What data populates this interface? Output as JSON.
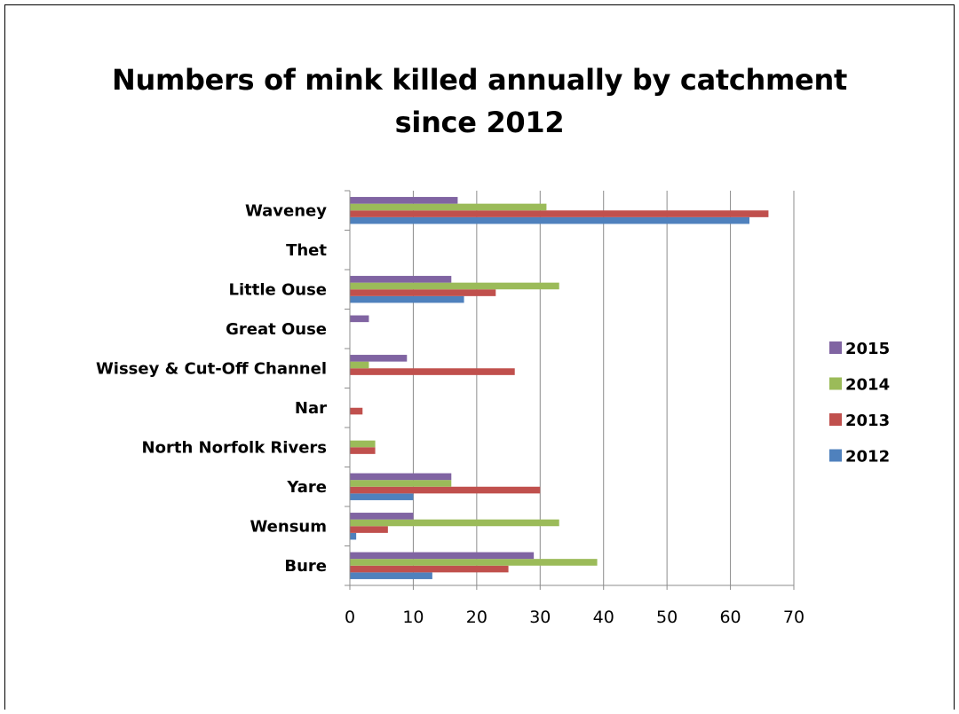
{
  "chart_data": {
    "type": "bar",
    "orientation": "horizontal",
    "title": "Numbers of mink killed annually by catchment since 2012",
    "xlabel": "",
    "ylabel": "",
    "xlim": [
      0,
      70
    ],
    "xticks": [
      0,
      10,
      20,
      30,
      40,
      50,
      60,
      70
    ],
    "grid": "vertical",
    "legend": "right",
    "categories": [
      "Bure",
      "Wensum",
      "Yare",
      "North Norfolk Rivers",
      "Nar",
      "Wissey & Cut-Off Channel",
      "Great Ouse",
      "Little Ouse",
      "Thet",
      "Waveney"
    ],
    "series": [
      {
        "name": "2012",
        "color": "#4F81BD",
        "values": [
          13,
          1,
          10,
          0,
          0,
          0,
          0,
          18,
          0,
          63
        ]
      },
      {
        "name": "2013",
        "color": "#C0504D",
        "values": [
          25,
          6,
          30,
          4,
          2,
          26,
          0,
          23,
          0,
          66
        ]
      },
      {
        "name": "2014",
        "color": "#9BBB59",
        "values": [
          39,
          33,
          16,
          4,
          0,
          3,
          0,
          33,
          0,
          31
        ]
      },
      {
        "name": "2015",
        "color": "#8064A2",
        "values": [
          29,
          10,
          16,
          0,
          0,
          9,
          3,
          16,
          0,
          17
        ]
      }
    ]
  }
}
